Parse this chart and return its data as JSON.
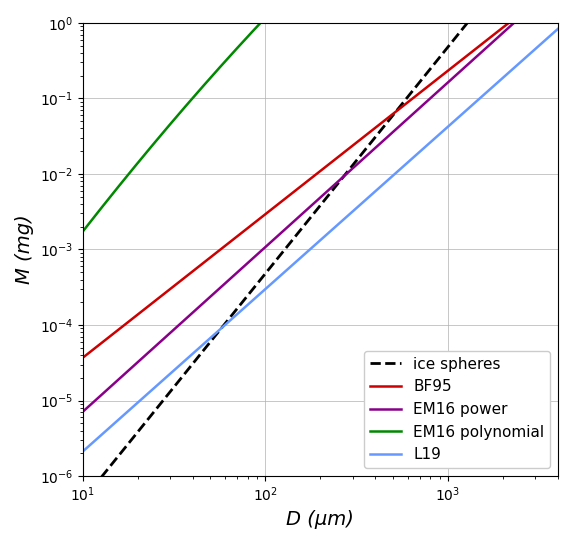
{
  "title": "",
  "xlabel": "D (μm)",
  "ylabel": "M (mg)",
  "xlim": [
    10,
    4000
  ],
  "ylim": [
    1e-06,
    1.0
  ],
  "lines": [
    {
      "label": "ice spheres",
      "color": "black",
      "linestyle": "--",
      "linewidth": 2.0,
      "type": "ice_sphere"
    },
    {
      "label": "BF95",
      "color": "#cc0000",
      "linestyle": "-",
      "linewidth": 1.8,
      "type": "bf95"
    },
    {
      "label": "EM16 power",
      "color": "#880088",
      "linestyle": "-",
      "linewidth": 1.8,
      "type": "em16_power"
    },
    {
      "label": "EM16 polynomial",
      "color": "#008800",
      "linestyle": "-",
      "linewidth": 1.8,
      "type": "em16_poly"
    },
    {
      "label": "L19",
      "color": "#6699ff",
      "linestyle": "-",
      "linewidth": 1.8,
      "type": "l19"
    }
  ],
  "grid": true,
  "grid_color": "#b0b0b0",
  "grid_linestyle": "-",
  "grid_linewidth": 0.5,
  "legend_loc": "lower right",
  "background_color": "#ffffff",
  "rho_ice": 917
}
